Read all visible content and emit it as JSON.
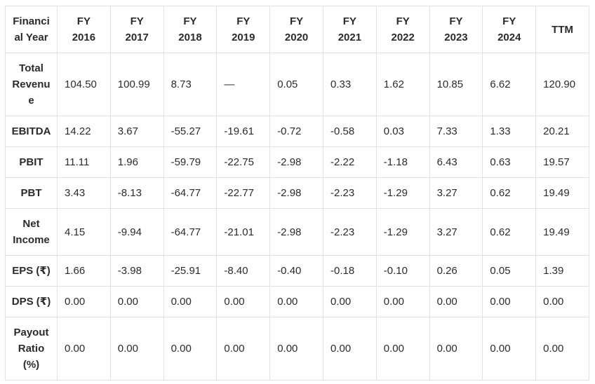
{
  "chart_data": {
    "type": "table",
    "columns": [
      "Financial Year",
      "FY 2016",
      "FY 2017",
      "FY 2018",
      "FY 2019",
      "FY 2020",
      "FY 2021",
      "FY 2022",
      "FY 2023",
      "FY 2024",
      "TTM"
    ],
    "rows": [
      {
        "label": "Total Revenue",
        "values": [
          "104.50",
          "100.99",
          "8.73",
          "—",
          "0.05",
          "0.33",
          "1.62",
          "10.85",
          "6.62",
          "120.90"
        ]
      },
      {
        "label": "EBITDA",
        "values": [
          "14.22",
          "3.67",
          "-55.27",
          "-19.61",
          "-0.72",
          "-0.58",
          "0.03",
          "7.33",
          "1.33",
          "20.21"
        ]
      },
      {
        "label": "PBIT",
        "values": [
          "11.11",
          "1.96",
          "-59.79",
          "-22.75",
          "-2.98",
          "-2.22",
          "-1.18",
          "6.43",
          "0.63",
          "19.57"
        ]
      },
      {
        "label": "PBT",
        "values": [
          "3.43",
          "-8.13",
          "-64.77",
          "-22.77",
          "-2.98",
          "-2.23",
          "-1.29",
          "3.27",
          "0.62",
          "19.49"
        ]
      },
      {
        "label": "Net Income",
        "values": [
          "4.15",
          "-9.94",
          "-64.77",
          "-21.01",
          "-2.98",
          "-2.23",
          "-1.29",
          "3.27",
          "0.62",
          "19.49"
        ]
      },
      {
        "label": "EPS (₹)",
        "values": [
          "1.66",
          "-3.98",
          "-25.91",
          "-8.40",
          "-0.40",
          "-0.18",
          "-0.10",
          "0.26",
          "0.05",
          "1.39"
        ]
      },
      {
        "label": "DPS (₹)",
        "values": [
          "0.00",
          "0.00",
          "0.00",
          "0.00",
          "0.00",
          "0.00",
          "0.00",
          "0.00",
          "0.00",
          "0.00"
        ]
      },
      {
        "label": "Payout Ratio (%)",
        "values": [
          "0.00",
          "0.00",
          "0.00",
          "0.00",
          "0.00",
          "0.00",
          "0.00",
          "0.00",
          "0.00",
          "0.00"
        ]
      }
    ],
    "layout": {
      "grid": "on",
      "header_position": "top-row-and-left-column"
    }
  },
  "colors": {
    "border": "#dee2e6",
    "text": "#2b2b2b",
    "background": "#ffffff"
  }
}
